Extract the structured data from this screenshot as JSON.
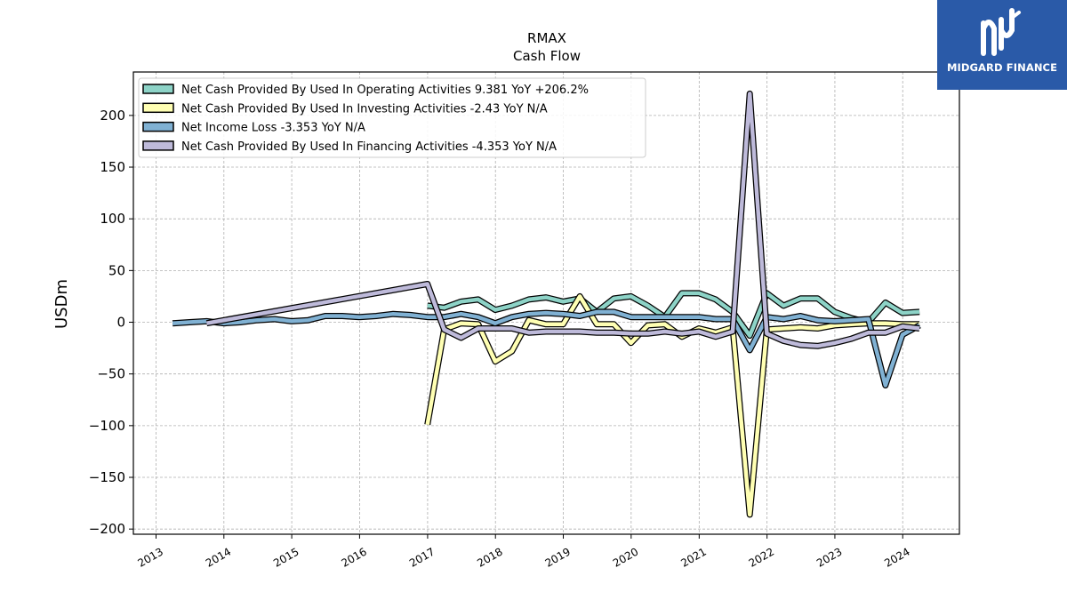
{
  "brand": {
    "name": "MIDGARD FINANCE",
    "color": "#2a5aa8"
  },
  "chart_data": {
    "type": "line",
    "title": "RMAX",
    "subtitle": "Cash Flow",
    "xlabel": "",
    "ylabel": "USDm",
    "ylim": [
      -205,
      242
    ],
    "xlim": [
      "2012-09-01",
      "2024-11-01"
    ],
    "yticks": [
      200,
      150,
      100,
      50,
      0,
      -50,
      -100,
      -150,
      -200
    ],
    "ytick_labels": [
      "200",
      "150",
      "100",
      "50",
      "0",
      "−50",
      "−100",
      "−150",
      "−200"
    ],
    "xticks": [
      "2013",
      "2014",
      "2015",
      "2016",
      "2017",
      "2018",
      "2019",
      "2020",
      "2021",
      "2022",
      "2023",
      "2024"
    ],
    "grid": true,
    "legend_position": "top-left",
    "series": [
      {
        "name": "Net Cash Provided By Used In Operating Activities  9.381 YoY +206.2%",
        "color": "#8dd3c7",
        "points": [
          [
            "2016-12-31",
            16
          ],
          [
            "2017-03-31",
            14
          ],
          [
            "2017-06-30",
            20
          ],
          [
            "2017-09-30",
            22
          ],
          [
            "2017-12-31",
            12
          ],
          [
            "2018-03-31",
            16
          ],
          [
            "2018-06-30",
            22
          ],
          [
            "2018-09-30",
            24
          ],
          [
            "2018-12-31",
            20
          ],
          [
            "2019-03-31",
            23
          ],
          [
            "2019-06-30",
            10
          ],
          [
            "2019-09-30",
            23
          ],
          [
            "2019-12-31",
            25
          ],
          [
            "2020-03-31",
            16
          ],
          [
            "2020-06-30",
            5
          ],
          [
            "2020-09-30",
            28
          ],
          [
            "2020-12-31",
            28
          ],
          [
            "2021-03-31",
            22
          ],
          [
            "2021-06-30",
            10
          ],
          [
            "2021-09-30",
            -13
          ],
          [
            "2021-12-31",
            28
          ],
          [
            "2022-03-31",
            16
          ],
          [
            "2022-06-30",
            23
          ],
          [
            "2022-09-30",
            23
          ],
          [
            "2022-12-31",
            10
          ],
          [
            "2023-03-31",
            4
          ],
          [
            "2023-06-30",
            0
          ],
          [
            "2023-09-30",
            19
          ],
          [
            "2023-12-31",
            9
          ],
          [
            "2024-03-31",
            10
          ]
        ]
      },
      {
        "name": "Net Cash Provided By Used In Investing Activities  -2.43 YoY N/A",
        "color": "#ffffb3",
        "points": [
          [
            "2016-12-31",
            -99
          ],
          [
            "2017-03-31",
            -7
          ],
          [
            "2017-06-30",
            -1
          ],
          [
            "2017-09-30",
            -2
          ],
          [
            "2017-12-31",
            -38
          ],
          [
            "2018-03-31",
            -28
          ],
          [
            "2018-06-30",
            2
          ],
          [
            "2018-09-30",
            -2
          ],
          [
            "2018-12-31",
            -2
          ],
          [
            "2019-03-31",
            25
          ],
          [
            "2019-06-30",
            -2
          ],
          [
            "2019-09-30",
            -2
          ],
          [
            "2019-12-31",
            -20
          ],
          [
            "2020-03-31",
            -3
          ],
          [
            "2020-06-30",
            -2
          ],
          [
            "2020-09-30",
            -14
          ],
          [
            "2020-12-31",
            -6
          ],
          [
            "2021-03-31",
            -10
          ],
          [
            "2021-06-30",
            -5
          ],
          [
            "2021-09-30",
            -186
          ],
          [
            "2021-12-31",
            -7
          ],
          [
            "2022-03-31",
            -6
          ],
          [
            "2022-06-30",
            -5
          ],
          [
            "2022-09-30",
            -6
          ],
          [
            "2022-12-31",
            -3
          ],
          [
            "2023-03-31",
            -2
          ],
          [
            "2023-06-30",
            -1
          ],
          [
            "2023-09-30",
            -1
          ],
          [
            "2023-12-31",
            -2
          ],
          [
            "2024-03-31",
            -2
          ]
        ]
      },
      {
        "name": "Net Income Loss  -3.353 YoY N/A",
        "color": "#80b1d3",
        "points": [
          [
            "2013-03-31",
            -1
          ],
          [
            "2013-06-30",
            0
          ],
          [
            "2013-09-30",
            1
          ],
          [
            "2013-12-31",
            -1
          ],
          [
            "2014-03-31",
            0
          ],
          [
            "2014-06-30",
            2
          ],
          [
            "2014-09-30",
            3
          ],
          [
            "2014-12-31",
            1
          ],
          [
            "2015-03-31",
            2
          ],
          [
            "2015-06-30",
            6
          ],
          [
            "2015-09-30",
            6
          ],
          [
            "2015-12-31",
            5
          ],
          [
            "2016-03-31",
            6
          ],
          [
            "2016-06-30",
            8
          ],
          [
            "2016-09-30",
            7
          ],
          [
            "2016-12-31",
            5
          ],
          [
            "2017-03-31",
            5
          ],
          [
            "2017-06-30",
            8
          ],
          [
            "2017-09-30",
            5
          ],
          [
            "2017-12-31",
            -1
          ],
          [
            "2018-03-31",
            5
          ],
          [
            "2018-06-30",
            8
          ],
          [
            "2018-09-30",
            9
          ],
          [
            "2018-12-31",
            8
          ],
          [
            "2019-03-31",
            6
          ],
          [
            "2019-06-30",
            10
          ],
          [
            "2019-09-30",
            10
          ],
          [
            "2019-12-31",
            5
          ],
          [
            "2020-03-31",
            5
          ],
          [
            "2020-06-30",
            5
          ],
          [
            "2020-09-30",
            5
          ],
          [
            "2020-12-31",
            5
          ],
          [
            "2021-03-31",
            3
          ],
          [
            "2021-06-30",
            3
          ],
          [
            "2021-09-30",
            -27
          ],
          [
            "2021-12-31",
            5
          ],
          [
            "2022-03-31",
            3
          ],
          [
            "2022-06-30",
            6
          ],
          [
            "2022-09-30",
            2
          ],
          [
            "2022-12-31",
            1
          ],
          [
            "2023-03-31",
            2
          ],
          [
            "2023-06-30",
            3
          ],
          [
            "2023-09-30",
            -61
          ],
          [
            "2023-12-31",
            -12
          ],
          [
            "2024-03-31",
            -3
          ]
        ]
      },
      {
        "name": "Net Cash Provided By Used In Financing Activities  -4.353 YoY N/A",
        "color": "#bebada",
        "points": [
          [
            "2013-09-30",
            -1
          ],
          [
            "2016-12-31",
            37
          ],
          [
            "2017-03-31",
            -7
          ],
          [
            "2017-06-30",
            -15
          ],
          [
            "2017-09-30",
            -6
          ],
          [
            "2017-12-31",
            -6
          ],
          [
            "2018-03-31",
            -6
          ],
          [
            "2018-06-30",
            -10
          ],
          [
            "2018-09-30",
            -9
          ],
          [
            "2018-12-31",
            -9
          ],
          [
            "2019-03-31",
            -9
          ],
          [
            "2019-06-30",
            -10
          ],
          [
            "2019-09-30",
            -10
          ],
          [
            "2019-12-31",
            -11
          ],
          [
            "2020-03-31",
            -11
          ],
          [
            "2020-06-30",
            -9
          ],
          [
            "2020-09-30",
            -11
          ],
          [
            "2020-12-31",
            -9
          ],
          [
            "2021-03-31",
            -14
          ],
          [
            "2021-06-30",
            -9
          ],
          [
            "2021-09-30",
            221
          ],
          [
            "2021-12-31",
            -11
          ],
          [
            "2022-03-31",
            -18
          ],
          [
            "2022-06-30",
            -22
          ],
          [
            "2022-09-30",
            -23
          ],
          [
            "2022-12-31",
            -20
          ],
          [
            "2023-03-31",
            -16
          ],
          [
            "2023-06-30",
            -10
          ],
          [
            "2023-09-30",
            -10
          ],
          [
            "2023-12-31",
            -4
          ],
          [
            "2024-03-31",
            -6
          ]
        ]
      }
    ]
  }
}
